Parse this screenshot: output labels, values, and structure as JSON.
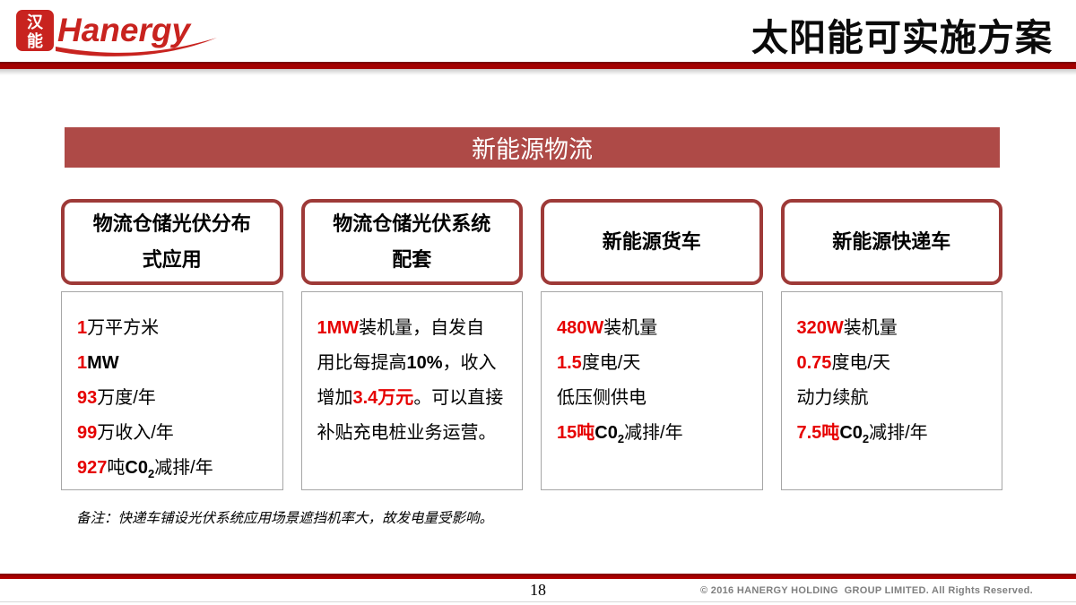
{
  "header": {
    "logo_seal_top": "汉",
    "logo_seal_bottom": "能",
    "logo_brand": "Hanergy",
    "title": "太阳能可实施方案"
  },
  "banner": {
    "label": "新能源物流"
  },
  "columns": [
    {
      "header_lines": [
        "物流仓储光伏分布",
        "式应用"
      ],
      "lines": [
        [
          {
            "t": "1",
            "red": true
          },
          {
            "t": "万平方米"
          }
        ],
        [
          {
            "t": "1",
            "red": true
          },
          {
            "t": "MW",
            "b": true
          }
        ],
        [
          {
            "t": "93",
            "red": true
          },
          {
            "t": "万度/年"
          }
        ],
        [
          {
            "t": "99",
            "red": true
          },
          {
            "t": "万收入/年"
          }
        ],
        [
          {
            "t": "927",
            "red": true
          },
          {
            "t": "吨"
          },
          {
            "t": "C0",
            "b": true
          },
          {
            "t": "2",
            "sub": true,
            "b": true
          },
          {
            "t": "减排/年"
          }
        ]
      ]
    },
    {
      "header_lines": [
        "物流仓储光伏系统",
        "配套"
      ],
      "lines": [
        [
          {
            "t": "1MW",
            "red": true
          },
          {
            "t": "装机量，自发自"
          }
        ],
        [
          {
            "t": "用比每提高"
          },
          {
            "t": "10%",
            "b": true
          },
          {
            "t": "，收入"
          }
        ],
        [
          {
            "t": "增加"
          },
          {
            "t": "3.4万元",
            "red": true
          },
          {
            "t": "。可以直接"
          }
        ],
        [
          {
            "t": "补贴充电桩业务运营。"
          }
        ]
      ]
    },
    {
      "header_lines": [
        "新能源货车"
      ],
      "lines": [
        [
          {
            "t": "480W",
            "red": true
          },
          {
            "t": "装机量"
          }
        ],
        [
          {
            "t": "1.5",
            "red": true
          },
          {
            "t": "度电/天"
          }
        ],
        [
          {
            "t": "低压侧供电"
          }
        ],
        [
          {
            "t": "15吨",
            "red": true
          },
          {
            "t": "C0",
            "b": true
          },
          {
            "t": "2",
            "sub": true,
            "b": true
          },
          {
            "t": "减排/年"
          }
        ]
      ]
    },
    {
      "header_lines": [
        "新能源快递车"
      ],
      "lines": [
        [
          {
            "t": "320W",
            "red": true
          },
          {
            "t": "装机量"
          }
        ],
        [
          {
            "t": "0.75",
            "red": true
          },
          {
            "t": "度电/天"
          }
        ],
        [
          {
            "t": "动力续航"
          }
        ],
        [
          {
            "t": "7.5吨",
            "red": true
          },
          {
            "t": "C0",
            "b": true
          },
          {
            "t": "2",
            "sub": true,
            "b": true
          },
          {
            "t": "减排/年"
          }
        ]
      ]
    }
  ],
  "note": "备注：快递车铺设光伏系统应用场景遮挡机率大，故发电量受影响。",
  "footer": {
    "page_number": "18",
    "copyright": "© 2016 HANERGY HOLDING  GROUP LIMITED. All Rights Reserved."
  },
  "colors": {
    "accent_red": "#e60000",
    "banner_bg": "#ae4a47",
    "box_border": "#9e3a38",
    "line_red": "#a40000",
    "copyright_gray": "#7f7f7f"
  }
}
